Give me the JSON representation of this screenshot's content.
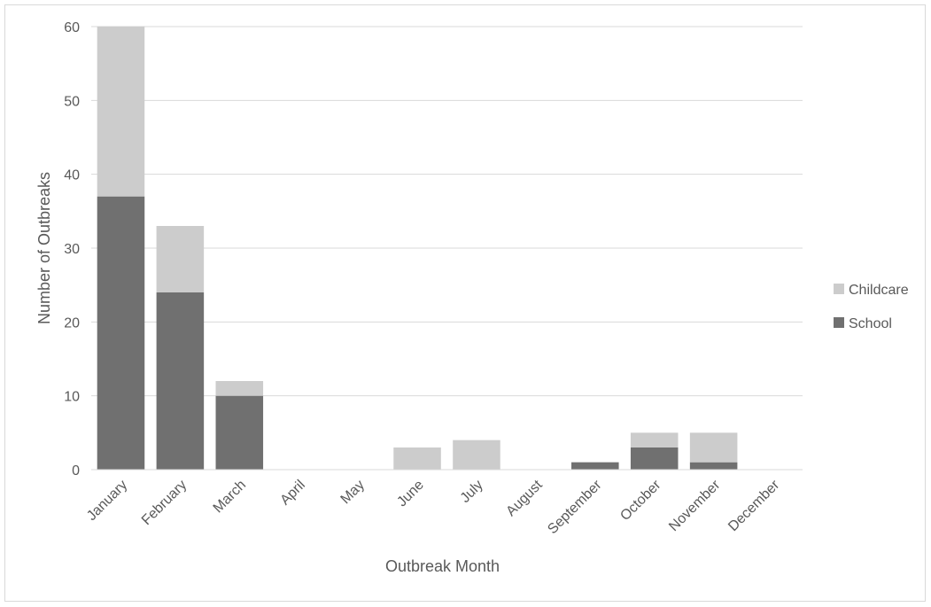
{
  "chart_data": {
    "type": "bar",
    "stacked": true,
    "categories": [
      "January",
      "February",
      "March",
      "April",
      "May",
      "June",
      "July",
      "August",
      "September",
      "October",
      "November",
      "December"
    ],
    "series": [
      {
        "name": "School",
        "values": [
          37,
          24,
          10,
          0,
          0,
          0,
          0,
          0,
          1,
          3,
          1,
          0
        ],
        "color": "#707070"
      },
      {
        "name": "Childcare",
        "values": [
          23,
          9,
          2,
          0,
          0,
          3,
          4,
          0,
          0,
          2,
          4,
          0
        ],
        "color": "#cccccc"
      }
    ],
    "xlabel": "Outbreak Month",
    "ylabel": "Number of Outbreaks",
    "ylim": [
      0,
      60
    ],
    "yticks": [
      0,
      10,
      20,
      30,
      40,
      50,
      60
    ],
    "grid": true,
    "legend_position": "right",
    "gridline_color": "#d9d9d9"
  }
}
